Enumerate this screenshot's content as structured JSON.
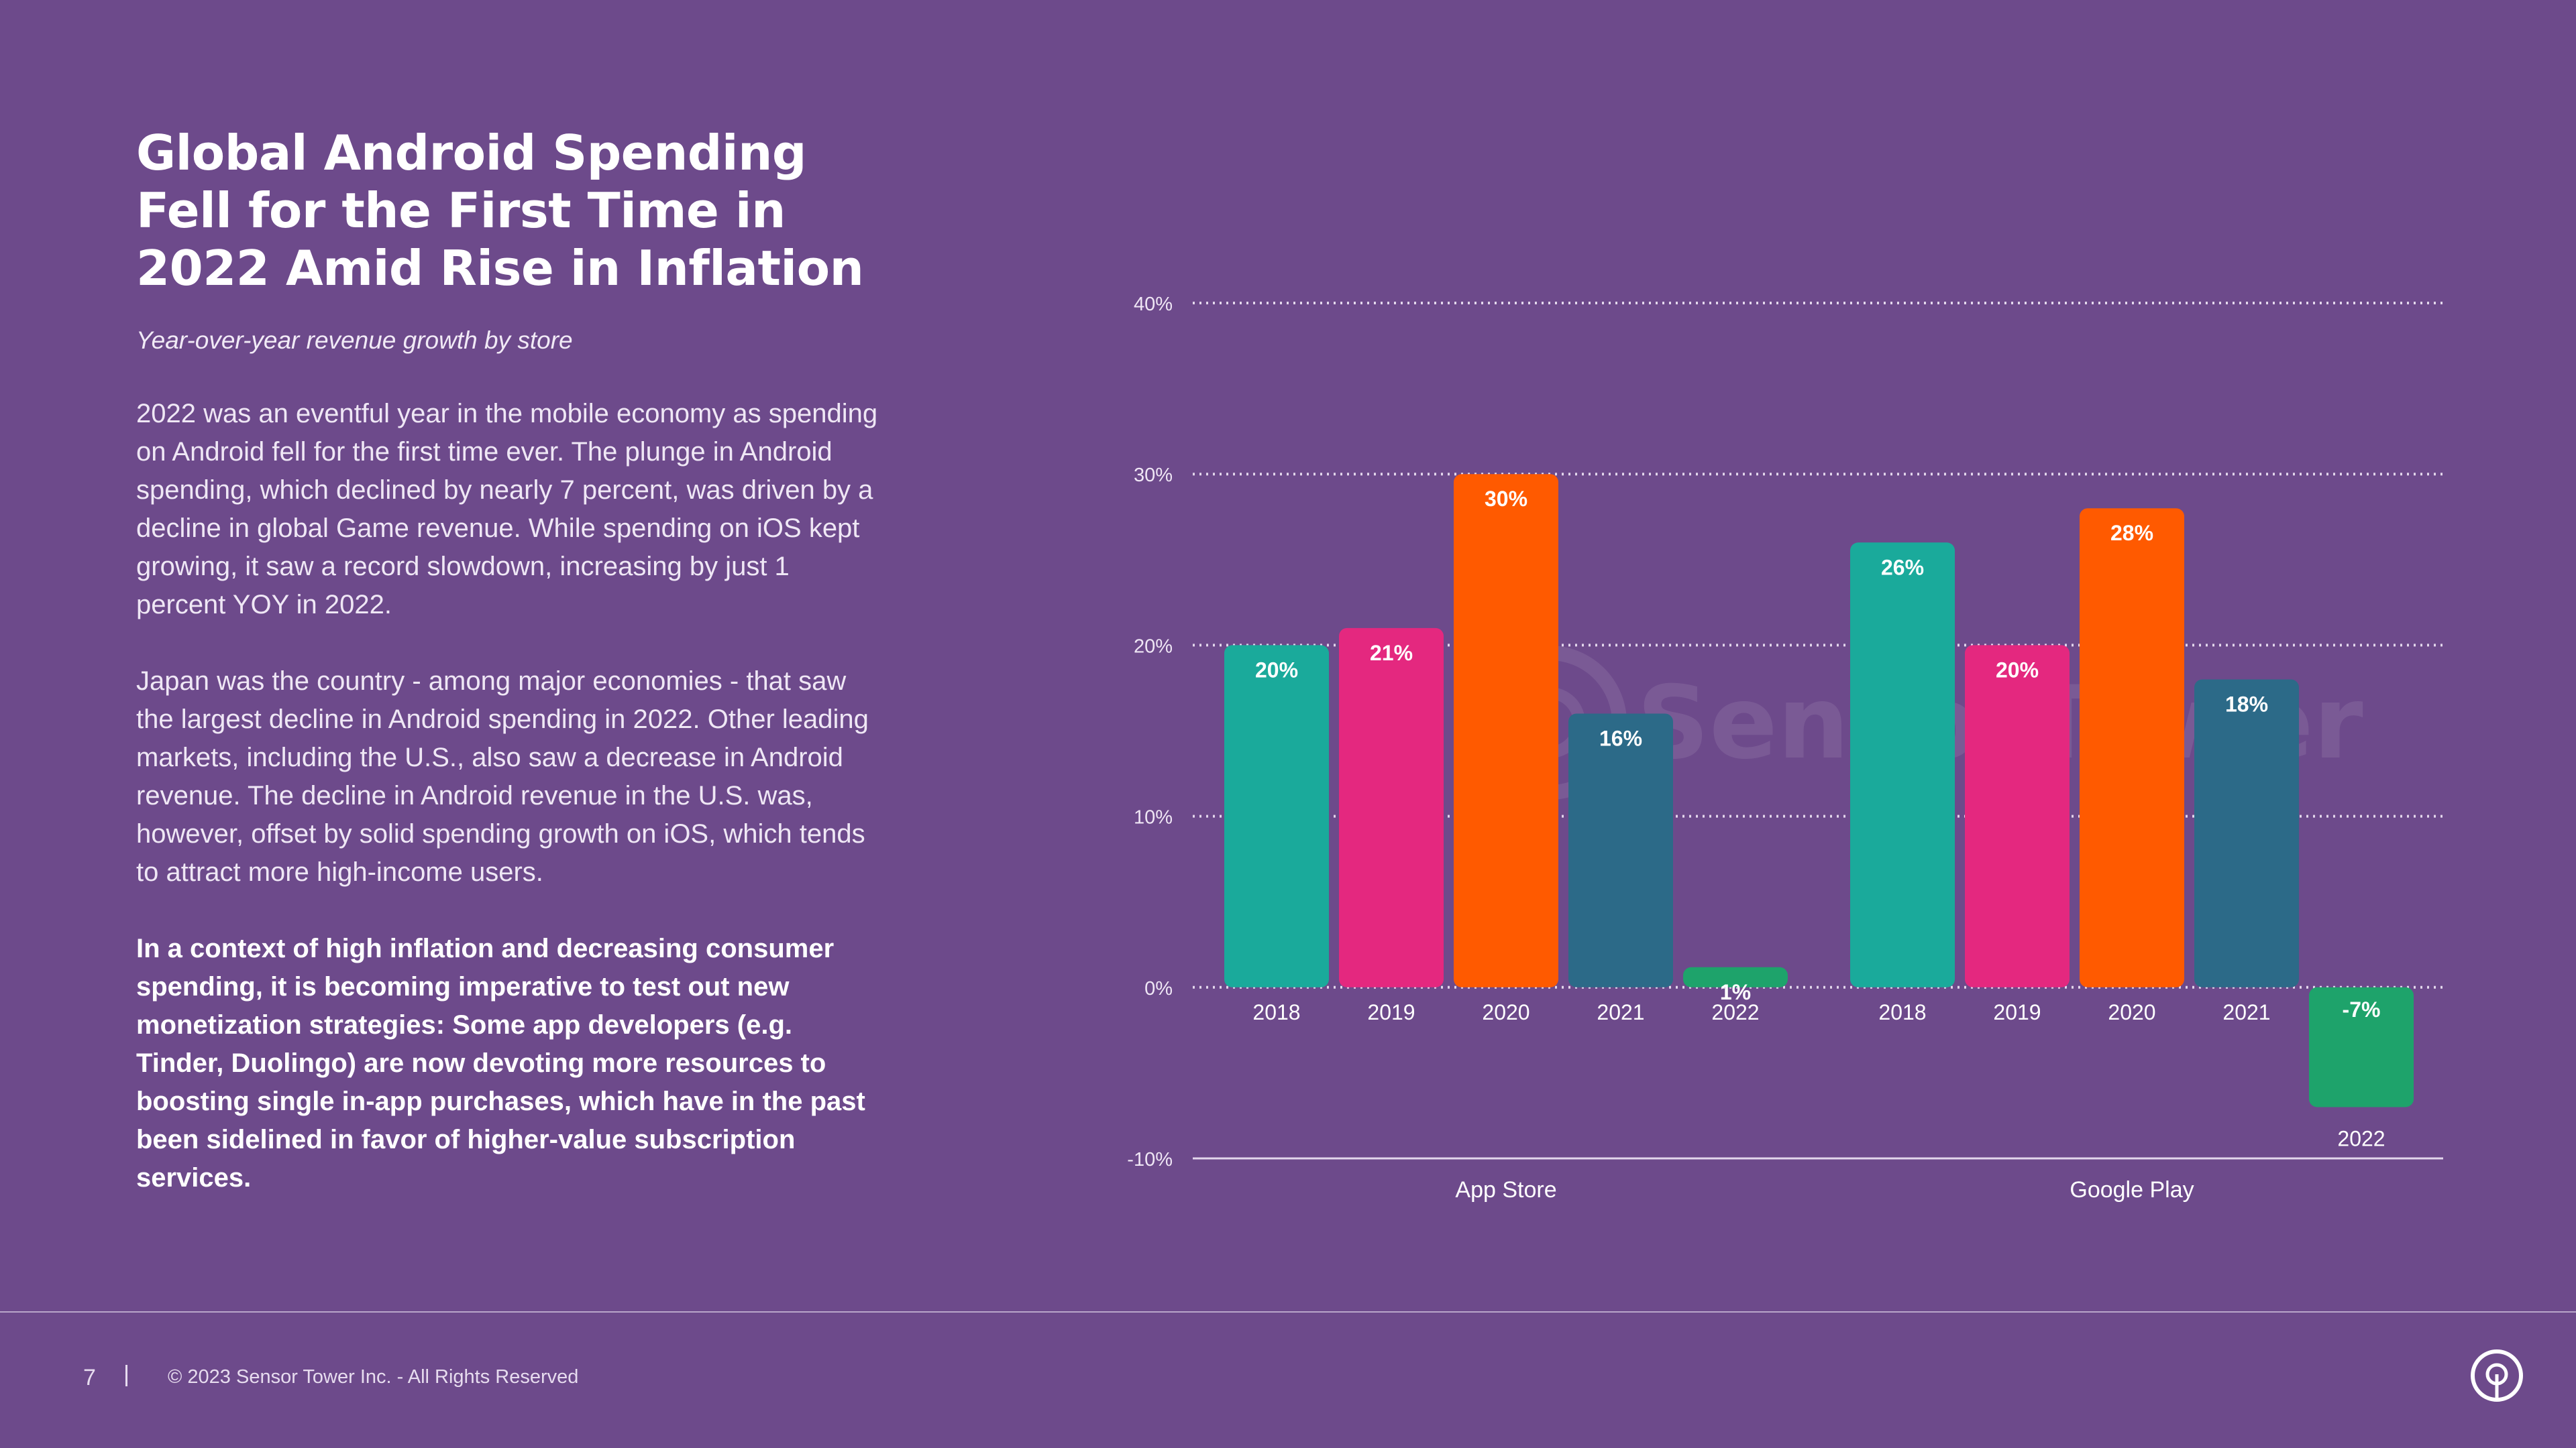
{
  "header": {
    "title": "Global Android Spending Fell for the First Time in 2022 Amid Rise in Inflation",
    "subtitle": "Year-over-year revenue growth by store"
  },
  "body": {
    "paragraph_1": "2022 was an eventful year in the mobile economy as spending on Android fell for the first time ever. The plunge in Android spending, which declined by nearly 7 percent, was driven by a decline in global Game revenue. While spending on iOS kept growing, it saw a record slowdown, increasing by just 1 percent YOY in 2022.",
    "paragraph_2": "Japan was the country - among major economies - that saw the largest decline in Android spending in 2022. Other leading markets, including the U.S., also saw a decrease in Android revenue. The decline in Android revenue in the U.S. was, however, offset by solid spending growth on iOS, which tends to attract more high-income users.",
    "paragraph_3": "In a context of high inflation and decreasing consumer spending, it is becoming imperative to test out new monetization strategies: Some app developers (e.g. Tinder, Duolingo) are now devoting more resources to boosting single in-app purchases, which have in the past been sidelined in favor of higher-value subscription services."
  },
  "watermark": "SensorTower",
  "footer": {
    "page_number": "7",
    "copyright": "© 2023 Sensor Tower Inc. - All Rights Reserved"
  },
  "colors": {
    "background": "#6d4a8b",
    "2018": "#1aaa9b",
    "2019": "#e4287f",
    "2020": "#ff5a00",
    "2021": "#2c6a88",
    "2022": "#1ea36b"
  },
  "chart_data": {
    "type": "bar",
    "ylim": [
      -10,
      40
    ],
    "yticks": [
      -10,
      0,
      10,
      20,
      30,
      40
    ],
    "ytick_labels": [
      "-10%",
      "0%",
      "10%",
      "20%",
      "30%",
      "40%"
    ],
    "grid": true,
    "groups": [
      {
        "name": "App Store",
        "bars": [
          {
            "year": "2018",
            "value": 20,
            "label": "20%"
          },
          {
            "year": "2019",
            "value": 21,
            "label": "21%"
          },
          {
            "year": "2020",
            "value": 30,
            "label": "30%"
          },
          {
            "year": "2021",
            "value": 16,
            "label": "16%"
          },
          {
            "year": "2022",
            "value": 1,
            "label": "1%"
          }
        ]
      },
      {
        "name": "Google Play",
        "bars": [
          {
            "year": "2018",
            "value": 26,
            "label": "26%"
          },
          {
            "year": "2019",
            "value": 20,
            "label": "20%"
          },
          {
            "year": "2020",
            "value": 28,
            "label": "28%"
          },
          {
            "year": "2021",
            "value": 18,
            "label": "18%"
          },
          {
            "year": "2022",
            "value": -7,
            "label": "-7%"
          }
        ]
      }
    ]
  }
}
